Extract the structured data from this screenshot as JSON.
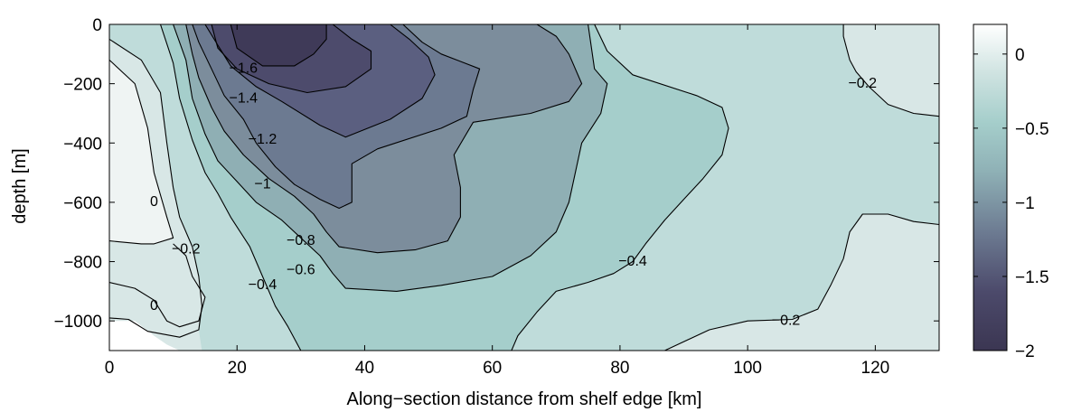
{
  "chart_data": {
    "type": "contour",
    "xlabel": "Along−section distance from shelf edge [km]",
    "ylabel": "depth [m]",
    "xlim": [
      0,
      130
    ],
    "ylim": [
      -1100,
      0
    ],
    "x_ticks": [
      0,
      20,
      40,
      60,
      80,
      100,
      120
    ],
    "y_ticks": [
      0,
      -200,
      -400,
      -600,
      -800,
      -1000
    ],
    "x_tick_labels": [
      "0",
      "20",
      "40",
      "60",
      "80",
      "100",
      "120"
    ],
    "y_tick_labels": [
      "0",
      "−200",
      "−400",
      "−600",
      "−800",
      "−1000"
    ],
    "grid": false,
    "colormap": "bone",
    "color_range": [
      -2,
      0.2
    ],
    "colorbar": {
      "ticks": [
        0,
        -0.5,
        -1,
        -1.5,
        -2
      ],
      "tick_labels": [
        "0",
        "−0.5",
        "−1",
        "−1.5",
        "−2"
      ],
      "placement": "right"
    },
    "colors": {
      "level_above_0": "#eff4f3",
      "level_0_to_-0.2": "#d8e7e6",
      "level_-0.2_to_-0.4": "#bfdcda",
      "level_-0.4_to_-0.6": "#a5cecb",
      "level_-0.6_to_-0.8": "#8fafb4",
      "level_-0.8_to_-1": "#7c8d9c",
      "level_-1_to_-1.2": "#6c7a91",
      "level_-1.2_to_-1.4": "#5b5f80",
      "level_-1.4_to_-1.6": "#4d4b6c",
      "level_below_-1.6": "#3f3a58",
      "bathymetry_mask": "#ffffff"
    },
    "contour_levels": [
      0,
      -0.2,
      -0.4,
      -0.6,
      -0.8,
      -1,
      -1.2,
      -1.4,
      -1.6
    ],
    "contour_labels": [
      {
        "text": "−1.6",
        "x": 21,
        "y": -150
      },
      {
        "text": "−1.4",
        "x": 21,
        "y": -250
      },
      {
        "text": "−1.2",
        "x": 24,
        "y": -390
      },
      {
        "text": "−1",
        "x": 24,
        "y": -540
      },
      {
        "text": "−0.8",
        "x": 30,
        "y": -730
      },
      {
        "text": "−0.6",
        "x": 30,
        "y": -830
      },
      {
        "text": "−0.4",
        "x": 24,
        "y": -880
      },
      {
        "text": "−0.2",
        "x": 12,
        "y": -760
      },
      {
        "text": "0",
        "x": 7,
        "y": -600
      },
      {
        "text": "0",
        "x": 7,
        "y": -950
      },
      {
        "text": "−0.4",
        "x": 82,
        "y": -800
      },
      {
        "text": "−0.2",
        "x": 106,
        "y": -1000
      },
      {
        "text": "−0.2",
        "x": 118,
        "y": -200
      }
    ],
    "contours": [
      {
        "level": 0,
        "points": [
          [
            0,
            -120
          ],
          [
            4,
            -200
          ],
          [
            6,
            -350
          ],
          [
            7,
            -500
          ],
          [
            9,
            -650
          ],
          [
            10,
            -720
          ],
          [
            7,
            -740
          ],
          [
            5,
            -740
          ],
          [
            0,
            -730
          ]
        ]
      },
      {
        "level": 0,
        "points": [
          [
            0,
            -870
          ],
          [
            4,
            -890
          ],
          [
            7,
            -930
          ],
          [
            9,
            -1000
          ],
          [
            11,
            -1020
          ],
          [
            14,
            -1000
          ],
          [
            15,
            -920
          ],
          [
            13,
            -850
          ],
          [
            12,
            -780
          ],
          [
            10,
            -740
          ]
        ]
      },
      {
        "level": -0.2,
        "points": [
          [
            0,
            -50
          ],
          [
            5,
            -120
          ],
          [
            8,
            -230
          ],
          [
            9,
            -400
          ],
          [
            10,
            -550
          ],
          [
            11,
            -650
          ],
          [
            13,
            -750
          ],
          [
            14,
            -850
          ],
          [
            14.5,
            -950
          ],
          [
            14,
            -1030
          ],
          [
            11,
            -1055
          ],
          [
            6,
            -1035
          ],
          [
            3,
            -995
          ],
          [
            0,
            -990
          ]
        ]
      },
      {
        "level": -0.2,
        "points": [
          [
            130,
            -310
          ],
          [
            126,
            -300
          ],
          [
            122,
            -270
          ],
          [
            119,
            -210
          ],
          [
            117,
            -160
          ],
          [
            116,
            -120
          ],
          [
            115,
            -40
          ],
          [
            115,
            0
          ]
        ]
      },
      {
        "level": -0.2,
        "points": [
          [
            130,
            -675
          ],
          [
            126,
            -665
          ],
          [
            122,
            -640
          ],
          [
            118,
            -640
          ],
          [
            116,
            -700
          ],
          [
            115,
            -790
          ],
          [
            113,
            -880
          ],
          [
            111,
            -960
          ],
          [
            107,
            -995
          ],
          [
            100,
            -1000
          ],
          [
            94,
            -1030
          ],
          [
            87,
            -1100
          ]
        ]
      },
      {
        "level": -0.4,
        "points": [
          [
            8,
            0
          ],
          [
            10,
            -130
          ],
          [
            11,
            -250
          ],
          [
            13,
            -390
          ],
          [
            15,
            -500
          ],
          [
            17,
            -570
          ],
          [
            19,
            -650
          ],
          [
            22,
            -750
          ],
          [
            24,
            -850
          ],
          [
            26,
            -950
          ],
          [
            28,
            -1020
          ],
          [
            30,
            -1100
          ]
        ]
      },
      {
        "level": -0.4,
        "points": [
          [
            76,
            0
          ],
          [
            78,
            -90
          ],
          [
            82,
            -170
          ],
          [
            92,
            -240
          ],
          [
            96,
            -280
          ],
          [
            97,
            -350
          ],
          [
            96,
            -440
          ],
          [
            93,
            -520
          ],
          [
            90,
            -590
          ],
          [
            87,
            -660
          ],
          [
            84,
            -740
          ],
          [
            82,
            -800
          ],
          [
            79,
            -840
          ],
          [
            75,
            -870
          ],
          [
            70,
            -900
          ],
          [
            67,
            -970
          ],
          [
            64,
            -1050
          ],
          [
            63,
            -1100
          ]
        ]
      },
      {
        "level": -0.6,
        "points": [
          [
            10,
            0
          ],
          [
            12,
            -120
          ],
          [
            13,
            -250
          ],
          [
            15,
            -370
          ],
          [
            17,
            -460
          ],
          [
            20,
            -530
          ],
          [
            23,
            -600
          ],
          [
            27,
            -660
          ],
          [
            30,
            -720
          ],
          [
            33,
            -780
          ],
          [
            35,
            -840
          ],
          [
            37,
            -890
          ],
          [
            45,
            -900
          ],
          [
            52,
            -880
          ],
          [
            60,
            -850
          ],
          [
            66,
            -780
          ],
          [
            70,
            -700
          ],
          [
            72,
            -600
          ],
          [
            73,
            -500
          ],
          [
            74,
            -400
          ],
          [
            77,
            -300
          ],
          [
            78,
            -200
          ],
          [
            76,
            -150
          ],
          [
            75,
            0
          ]
        ]
      },
      {
        "level": -0.8,
        "points": [
          [
            12,
            0
          ],
          [
            13,
            -100
          ],
          [
            14,
            -180
          ],
          [
            16,
            -280
          ],
          [
            18,
            -360
          ],
          [
            21,
            -440
          ],
          [
            25,
            -520
          ],
          [
            29,
            -580
          ],
          [
            32,
            -640
          ],
          [
            34,
            -700
          ],
          [
            36,
            -750
          ],
          [
            42,
            -770
          ],
          [
            48,
            -760
          ],
          [
            53,
            -730
          ],
          [
            55,
            -650
          ],
          [
            55,
            -550
          ],
          [
            54,
            -440
          ],
          [
            57,
            -330
          ],
          [
            66,
            -300
          ],
          [
            72,
            -260
          ],
          [
            74,
            -200
          ],
          [
            72,
            -100
          ],
          [
            70,
            -40
          ],
          [
            67,
            0
          ]
        ]
      },
      {
        "level": -1,
        "points": [
          [
            13,
            0
          ],
          [
            14,
            -60
          ],
          [
            16,
            -150
          ],
          [
            18,
            -240
          ],
          [
            21,
            -320
          ],
          [
            23,
            -400
          ],
          [
            26,
            -480
          ],
          [
            29,
            -540
          ],
          [
            33,
            -590
          ],
          [
            36,
            -620
          ],
          [
            38,
            -600
          ],
          [
            38,
            -470
          ],
          [
            42,
            -420
          ],
          [
            52,
            -350
          ],
          [
            56,
            -310
          ],
          [
            57,
            -220
          ],
          [
            58,
            -150
          ],
          [
            52,
            -100
          ],
          [
            49,
            -60
          ],
          [
            46,
            0
          ]
        ]
      },
      {
        "level": -1.2,
        "points": [
          [
            15,
            0
          ],
          [
            17,
            -70
          ],
          [
            19,
            -140
          ],
          [
            23,
            -210
          ],
          [
            27,
            -260
          ],
          [
            33,
            -340
          ],
          [
            35,
            -360
          ],
          [
            37,
            -380
          ],
          [
            44,
            -320
          ],
          [
            49,
            -250
          ],
          [
            51,
            -170
          ],
          [
            50,
            -110
          ],
          [
            47,
            -50
          ],
          [
            44,
            0
          ]
        ]
      },
      {
        "level": -1.4,
        "points": [
          [
            16,
            0
          ],
          [
            17,
            -80
          ],
          [
            20,
            -150
          ],
          [
            25,
            -200
          ],
          [
            31,
            -230
          ],
          [
            37,
            -210
          ],
          [
            41,
            -150
          ],
          [
            41,
            -90
          ],
          [
            38,
            -50
          ],
          [
            35,
            0
          ]
        ]
      },
      {
        "level": -1.6,
        "points": [
          [
            19,
            0
          ],
          [
            20,
            -80
          ],
          [
            24,
            -140
          ],
          [
            29,
            -140
          ],
          [
            32,
            -100
          ],
          [
            34,
            -50
          ],
          [
            34,
            0
          ]
        ]
      }
    ],
    "bathymetry": [
      [
        0,
        -1000
      ],
      [
        4,
        -1000
      ],
      [
        7,
        -1050
      ],
      [
        9,
        -1080
      ],
      [
        11,
        -1100
      ]
    ]
  }
}
